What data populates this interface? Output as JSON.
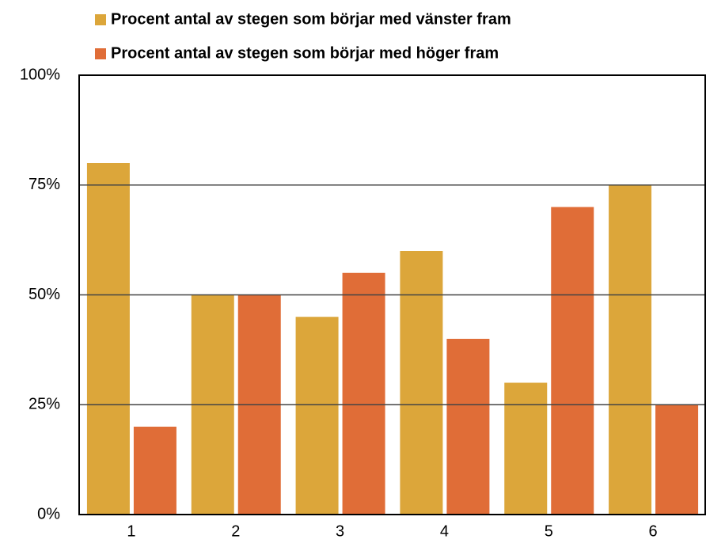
{
  "chart_data": {
    "type": "bar",
    "categories": [
      "1",
      "2",
      "3",
      "4",
      "5",
      "6"
    ],
    "series": [
      {
        "name": "Procent antal av stegen som börjar med vänster fram",
        "color": "#dca63a",
        "values": [
          80,
          50,
          45,
          60,
          30,
          75
        ]
      },
      {
        "name": "Procent antal av stegen som börjar med höger fram",
        "color": "#e06d37",
        "values": [
          20,
          50,
          55,
          40,
          70,
          25
        ]
      }
    ],
    "ylim": [
      0,
      100
    ],
    "yticks": [
      {
        "value": 0,
        "label": "0%"
      },
      {
        "value": 25,
        "label": "25%"
      },
      {
        "value": 50,
        "label": "50%"
      },
      {
        "value": 75,
        "label": "75%"
      },
      {
        "value": 100,
        "label": "100%"
      }
    ],
    "grid": true,
    "legend": "top"
  }
}
